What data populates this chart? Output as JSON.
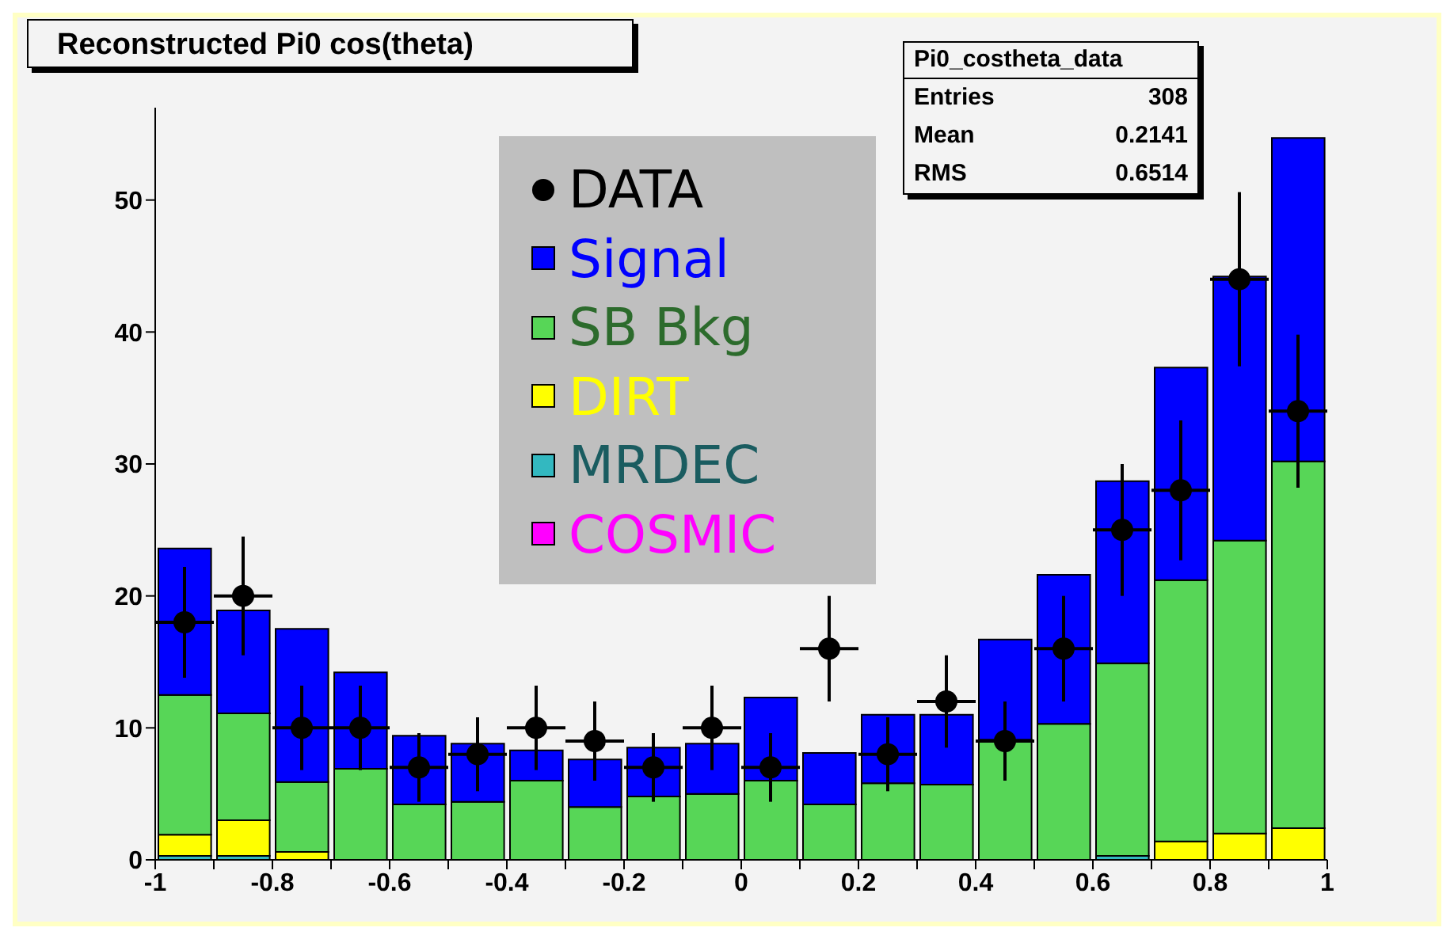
{
  "chart_data": {
    "type": "bar",
    "title": "Reconstructed Pi0 cos(theta)",
    "stacked": true,
    "legend": "top",
    "marker": "circle",
    "x": [
      -0.95,
      -0.85,
      -0.75,
      -0.65,
      -0.55,
      -0.45,
      -0.35,
      -0.25,
      -0.15,
      -0.05,
      0.05,
      0.15,
      0.25,
      0.35,
      0.45,
      0.55,
      0.65,
      0.75,
      0.85,
      0.95
    ],
    "xlim": [
      -1,
      1
    ],
    "xticks": [
      -1,
      {
        "value": -0.9,
        "label": null
      },
      -0.8,
      {
        "value": -0.7,
        "label": null
      },
      -0.6,
      {
        "value": -0.5,
        "label": null
      },
      -0.4,
      {
        "value": -0.3,
        "label": null
      },
      -0.2,
      {
        "value": -0.1,
        "label": null
      },
      0,
      {
        "value": 0.1,
        "label": null
      },
      0.2,
      {
        "value": 0.3,
        "label": null
      },
      0.4,
      {
        "value": 0.5,
        "label": null
      },
      0.6,
      {
        "value": 0.7,
        "label": null
      },
      0.8,
      {
        "value": 0.9,
        "label": null
      },
      1
    ],
    "ylim": [
      0,
      57
    ],
    "yticks": [
      0,
      10,
      20,
      30,
      40,
      50
    ],
    "annotations": [
      "Pi0_costheta_data",
      "Entries",
      "308",
      "Mean",
      "0.2141",
      "RMS",
      "0.6514"
    ],
    "series": [
      {
        "name": "COSMIC",
        "color": "#ff00ff",
        "values": [
          0,
          0,
          0,
          0,
          0,
          0,
          0,
          0,
          0,
          0,
          0,
          0,
          0,
          0,
          0,
          0,
          0,
          0,
          0,
          0
        ]
      },
      {
        "name": "MRDEC",
        "color": "#33b8c0",
        "values": [
          0.3,
          0.3,
          0,
          0,
          0,
          0,
          0,
          0,
          0,
          0,
          0,
          0,
          0,
          0,
          0,
          0,
          0.3,
          0,
          0,
          0
        ]
      },
      {
        "name": "DIRT",
        "color": "#ffff00",
        "values": [
          1.6,
          2.7,
          0.6,
          0,
          null,
          0,
          0,
          0,
          0,
          0,
          0,
          0,
          null,
          null,
          0,
          null,
          0,
          1.4,
          2.0,
          2.4
        ]
      },
      {
        "name": "SB Bkg",
        "color": "#57d657",
        "values": [
          10.6,
          8.1,
          5.3,
          6.9,
          4.2,
          4.4,
          6.0,
          4.0,
          4.8,
          5.0,
          6.0,
          4.2,
          5.8,
          5.7,
          9.1,
          10.3,
          14.6,
          19.8,
          22.2,
          27.8
        ]
      },
      {
        "name": "Signal",
        "color": "#0000ff",
        "values": [
          11.1,
          7.8,
          11.6,
          7.3,
          5.2,
          4.4,
          2.3,
          3.6,
          3.7,
          3.8,
          6.3,
          3.9,
          5.2,
          5.3,
          7.6,
          11.3,
          13.8,
          16.1,
          20.0,
          24.5
        ]
      },
      {
        "name": "DATA",
        "type": "scatter",
        "color": "#000000",
        "x": [
          -0.95,
          -0.85,
          -0.75,
          -0.65,
          -0.55,
          -0.45,
          -0.35,
          -0.25,
          -0.15,
          -0.05,
          0.05,
          0.15,
          0.25,
          0.35,
          0.45,
          0.55,
          0.65,
          0.75,
          0.85,
          0.95
        ],
        "values": [
          18,
          20,
          10,
          10,
          7,
          8,
          10,
          9,
          7,
          10,
          7,
          16,
          8,
          12,
          9,
          16,
          25,
          28,
          44,
          34
        ],
        "errors": [
          4.2,
          4.5,
          3.2,
          3.2,
          2.6,
          2.8,
          3.2,
          3,
          2.6,
          3.2,
          2.6,
          4,
          2.8,
          3.5,
          3,
          4,
          5,
          5.3,
          6.6,
          5.8
        ],
        "xerrors": [
          0.05,
          0.05,
          0.05,
          0.05,
          0.05,
          0.05,
          0.05,
          0.05,
          0.05,
          0.05,
          0.05,
          0.05,
          0.05,
          0.05,
          0.05,
          0.05,
          0.05,
          0.05,
          0.05,
          0.05
        ]
      }
    ]
  }
}
